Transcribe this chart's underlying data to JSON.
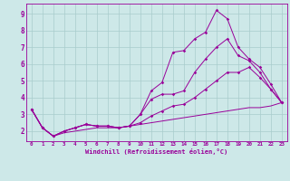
{
  "xlabel": "Windchill (Refroidissement éolien,°C)",
  "xlim": [
    -0.5,
    23.5
  ],
  "ylim": [
    1.4,
    9.6
  ],
  "yticks": [
    2,
    3,
    4,
    5,
    6,
    7,
    8,
    9
  ],
  "xticks": [
    0,
    1,
    2,
    3,
    4,
    5,
    6,
    7,
    8,
    9,
    10,
    11,
    12,
    13,
    14,
    15,
    16,
    17,
    18,
    19,
    20,
    21,
    22,
    23
  ],
  "bg_color": "#cde8e8",
  "grid_color": "#a8cccc",
  "line_color": "#990099",
  "curves": [
    [
      3.3,
      2.2,
      1.7,
      2.0,
      2.2,
      2.4,
      2.3,
      2.3,
      2.2,
      2.3,
      3.0,
      4.4,
      4.9,
      6.7,
      6.8,
      7.5,
      7.9,
      9.2,
      8.7,
      7.0,
      6.3,
      5.8,
      4.8,
      3.7
    ],
    [
      3.3,
      2.2,
      1.7,
      2.0,
      2.2,
      2.4,
      2.3,
      2.3,
      2.2,
      2.3,
      3.0,
      3.9,
      4.2,
      4.2,
      4.4,
      5.5,
      6.3,
      7.0,
      7.5,
      6.5,
      6.2,
      5.5,
      4.5,
      3.7
    ],
    [
      3.3,
      2.2,
      1.7,
      2.0,
      2.2,
      2.4,
      2.3,
      2.3,
      2.2,
      2.3,
      2.5,
      2.9,
      3.2,
      3.5,
      3.6,
      4.0,
      4.5,
      5.0,
      5.5,
      5.5,
      5.8,
      5.2,
      4.5,
      3.7
    ],
    [
      3.3,
      2.2,
      1.7,
      1.9,
      2.0,
      2.1,
      2.2,
      2.2,
      2.2,
      2.3,
      2.4,
      2.5,
      2.6,
      2.7,
      2.8,
      2.9,
      3.0,
      3.1,
      3.2,
      3.3,
      3.4,
      3.4,
      3.5,
      3.7
    ]
  ]
}
